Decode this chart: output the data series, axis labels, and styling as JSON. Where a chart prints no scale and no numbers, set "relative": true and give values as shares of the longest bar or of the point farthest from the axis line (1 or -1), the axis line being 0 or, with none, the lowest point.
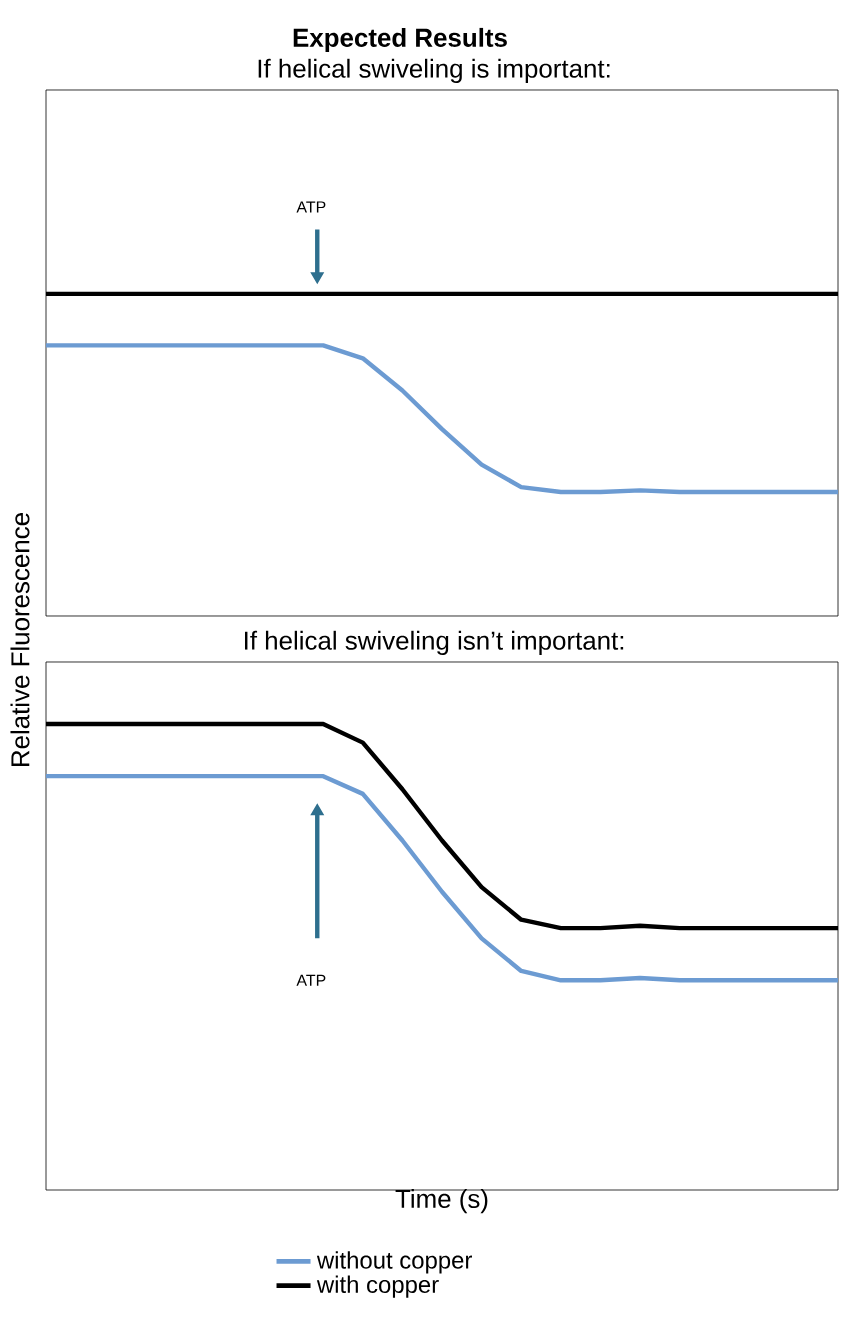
{
  "chart_data": [
    {
      "type": "line",
      "title": "Expected Results",
      "subtitle": "If helical swiveling is important:",
      "ylabel": "Relative Fluorescence",
      "relative": true,
      "legend": false,
      "line_style": "solid",
      "annotations": [
        "ATP"
      ],
      "categories": [
        null,
        null,
        null,
        null,
        null,
        null,
        null,
        null,
        null,
        null,
        null,
        null,
        null,
        null,
        null,
        null,
        null,
        null,
        null,
        null,
        null
      ],
      "series": [
        {
          "color": "#6c9bd2",
          "values": [
            0.84,
            0.84,
            0.84,
            0.84,
            0.84,
            0.84,
            0.84,
            0.84,
            0.8,
            0.7,
            0.58,
            0.47,
            0.4,
            0.385,
            0.385,
            0.39,
            0.385,
            0.385,
            0.385,
            0.385,
            0.385
          ]
        },
        {
          "color": "#000000",
          "values": [
            1,
            1,
            1,
            1,
            1,
            1,
            1,
            1,
            1,
            1,
            1,
            1,
            1,
            1,
            1,
            1,
            1,
            1,
            1,
            1,
            1
          ]
        }
      ]
    },
    {
      "type": "line",
      "title": "If helical swiveling isn’t important:",
      "xlabel": "Time (s)",
      "relative": true,
      "legend": "bottom",
      "line_style": "solid",
      "annotations": [
        "ATP"
      ],
      "categories": [
        null,
        null,
        null,
        null,
        null,
        null,
        null,
        null,
        null,
        null,
        null,
        null,
        null,
        null,
        null,
        null,
        null,
        null,
        null,
        null,
        null
      ],
      "series": [
        {
          "name": "without copper",
          "color": "#6c9bd2",
          "values": [
            0.888,
            0.888,
            0.888,
            0.888,
            0.888,
            0.888,
            0.888,
            0.888,
            0.85,
            0.75,
            0.64,
            0.54,
            0.47,
            0.45,
            0.45,
            0.455,
            0.45,
            0.45,
            0.45,
            0.45,
            0.45
          ]
        },
        {
          "name": "with copper",
          "color": "#000000",
          "values": [
            1,
            1,
            1,
            1,
            1,
            1,
            1,
            1,
            0.96,
            0.86,
            0.75,
            0.65,
            0.58,
            0.562,
            0.562,
            0.567,
            0.562,
            0.562,
            0.562,
            0.562,
            0.562
          ]
        }
      ]
    }
  ]
}
